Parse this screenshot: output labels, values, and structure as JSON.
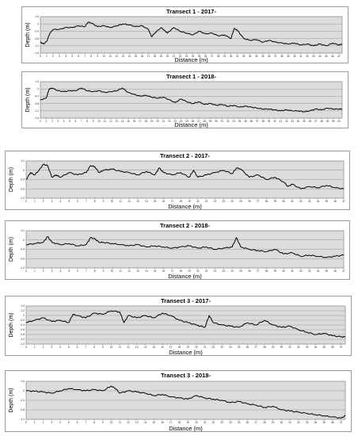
{
  "chart_data": [
    {
      "type": "line",
      "title": "Transect 1 - 2017-",
      "xlabel": "Distance (m)",
      "ylabel": "Depth (m)",
      "xlim": [
        0,
        47.5
      ],
      "ylim": [
        -1.6,
        0.4
      ],
      "yticks": [
        0.4,
        0,
        -0.4,
        -0.8,
        -1.2,
        -1.6
      ],
      "ytick_labels": [
        "0.4",
        "0",
        "-0.4",
        "-0.8",
        "-1.2",
        "-1.6"
      ],
      "xticks": [
        0,
        1,
        2,
        3,
        4,
        5,
        6,
        7,
        8,
        9,
        10,
        11,
        12,
        13,
        14,
        15,
        16,
        17,
        18,
        19,
        20,
        21,
        22,
        23,
        24,
        25,
        26,
        27,
        28,
        29,
        30,
        31,
        32,
        33,
        34,
        35,
        36,
        37,
        38,
        39,
        40,
        41,
        42,
        43,
        44,
        45,
        46,
        47
      ],
      "grid": true,
      "series": [
        {
          "x": [
            0,
            0.5,
            1,
            1.5,
            2,
            3,
            4,
            5,
            6,
            7,
            7.5,
            8,
            9,
            10,
            11,
            12,
            13,
            14,
            15,
            16,
            17,
            17.5,
            18,
            19,
            19.5,
            20,
            21,
            22,
            23,
            24,
            25,
            26,
            27,
            28,
            29,
            30,
            30.5,
            31,
            32,
            33,
            34,
            35,
            36,
            37,
            38,
            39,
            40,
            41,
            42,
            43,
            44,
            45,
            46,
            47,
            47.5
          ],
          "values": [
            -1.0,
            -1.1,
            -0.95,
            -0.5,
            -0.3,
            -0.3,
            -0.2,
            -0.2,
            -0.1,
            -0.15,
            0.1,
            0.05,
            -0.15,
            -0.1,
            -0.2,
            -0.1,
            0.0,
            -0.05,
            -0.15,
            -0.1,
            -0.3,
            -0.7,
            -0.5,
            -0.2,
            -0.35,
            -0.5,
            -0.2,
            -0.4,
            -0.5,
            -0.6,
            -0.4,
            -0.55,
            -0.5,
            -0.65,
            -0.6,
            -0.8,
            -0.25,
            -0.35,
            -0.8,
            -0.9,
            -0.85,
            -1.0,
            -0.9,
            -1.0,
            -1.05,
            -1.1,
            -1.05,
            -1.15,
            -1.1,
            -1.2,
            -1.1,
            -1.2,
            -1.05,
            -1.15,
            -1.1
          ]
        }
      ]
    },
    {
      "type": "line",
      "title": "Transect 1 - 2018-",
      "xlabel": "Distance (m)",
      "ylabel": "Depth (m)",
      "xlim": [
        0,
        51.5
      ],
      "ylim": [
        -1.6,
        0.4
      ],
      "yticks": [
        0.4,
        0,
        -0.4,
        -0.8,
        -1.2,
        -1.6
      ],
      "ytick_labels": [
        "0.4",
        "0",
        "-0.4",
        "-0.8",
        "-1.2",
        "-1.6"
      ],
      "xticks": [
        0,
        1,
        2,
        3,
        4,
        5,
        6,
        7,
        8,
        9,
        10,
        11,
        12,
        13,
        14,
        15,
        16,
        17,
        18,
        19,
        20,
        21,
        22,
        23,
        24,
        25,
        26,
        27,
        28,
        29,
        30,
        31,
        32,
        33,
        34,
        35,
        36,
        37,
        38,
        39,
        40,
        41,
        42,
        43,
        44,
        45,
        46,
        47,
        48,
        49,
        50,
        51
      ],
      "grid": true,
      "series": [
        {
          "x": [
            0,
            1,
            1.5,
            2,
            3,
            4,
            5,
            6,
            7,
            8,
            9,
            10,
            11,
            12,
            13,
            14,
            15,
            16,
            17,
            18,
            19,
            20,
            21,
            22,
            23,
            24,
            25,
            26,
            27,
            28,
            29,
            30,
            31,
            32,
            33,
            34,
            35,
            36,
            37,
            38,
            39,
            40,
            41,
            42,
            43,
            44,
            45,
            46,
            47,
            48,
            49,
            50,
            51,
            51.5
          ],
          "values": [
            -0.6,
            -0.5,
            0.0,
            0.05,
            -0.1,
            -0.15,
            -0.1,
            -0.1,
            0.05,
            -0.1,
            -0.15,
            -0.1,
            -0.2,
            -0.15,
            -0.1,
            0.05,
            -0.2,
            -0.3,
            -0.4,
            -0.35,
            -0.45,
            -0.5,
            -0.45,
            -0.6,
            -0.75,
            -0.55,
            -0.7,
            -0.8,
            -0.7,
            -0.85,
            -0.8,
            -0.9,
            -0.85,
            -0.95,
            -0.9,
            -1.0,
            -0.95,
            -1.0,
            -1.05,
            -1.1,
            -1.1,
            -1.15,
            -1.2,
            -1.15,
            -1.2,
            -1.2,
            -1.25,
            -1.2,
            -1.1,
            -1.15,
            -1.05,
            -1.1,
            -1.1,
            -1.1
          ]
        }
      ]
    },
    {
      "type": "line",
      "title": "Transect 2 - 2017-",
      "xlabel": "Distance (m)",
      "ylabel": "Depth (m)",
      "xlim": [
        0,
        37
      ],
      "ylim": [
        -1.2,
        0.4
      ],
      "yticks": [
        0.4,
        0,
        -0.4,
        -0.8,
        -1.2
      ],
      "ytick_labels": [
        "0.4",
        "0",
        "-0.4",
        "-0.8",
        "-1.2"
      ],
      "xticks": [
        0,
        1,
        2,
        3,
        4,
        5,
        6,
        7,
        8,
        9,
        10,
        11,
        12,
        13,
        14,
        15,
        16,
        17,
        18,
        19,
        20,
        21,
        22,
        23,
        24,
        25,
        26,
        27,
        28,
        29,
        30,
        31,
        32,
        33,
        34,
        35,
        36,
        37
      ],
      "grid": true,
      "series": [
        {
          "x": [
            0,
            0.5,
            1,
            1.5,
            2,
            2.5,
            3,
            3.5,
            4,
            5,
            6,
            7,
            7.5,
            8,
            8.5,
            9,
            10,
            11,
            12,
            13,
            14,
            15,
            15.5,
            16,
            17,
            18,
            19,
            19.5,
            20,
            21,
            22,
            23,
            24,
            24.5,
            25,
            26,
            27,
            28,
            29,
            30,
            30.5,
            31,
            32,
            33,
            34,
            35,
            36,
            37
          ],
          "values": [
            -0.4,
            -0.1,
            -0.2,
            0.0,
            0.25,
            0.2,
            -0.3,
            -0.2,
            -0.3,
            -0.1,
            -0.2,
            -0.1,
            0.2,
            0.15,
            -0.1,
            0.0,
            0.05,
            -0.05,
            -0.1,
            -0.2,
            -0.05,
            -0.2,
            0.1,
            -0.1,
            -0.2,
            -0.1,
            -0.3,
            0.0,
            -0.3,
            -0.2,
            -0.1,
            0.0,
            -0.15,
            0.1,
            0.05,
            -0.3,
            -0.2,
            -0.4,
            -0.3,
            -0.5,
            -0.7,
            -0.6,
            -0.8,
            -0.7,
            -0.75,
            -0.65,
            -0.75,
            -0.8
          ]
        }
      ]
    },
    {
      "type": "line",
      "title": "Transect 2 - 2018-",
      "xlabel": "Distance (m)",
      "ylabel": "Depth (m)",
      "xlim": [
        0,
        37
      ],
      "ylim": [
        -1.2,
        0.4
      ],
      "yticks": [
        0.4,
        0,
        -0.4,
        -0.8,
        -1.2
      ],
      "ytick_labels": [
        "0.4",
        "0",
        "-0.4",
        "-0.8",
        "-1.2"
      ],
      "xticks": [
        0,
        1,
        2,
        3,
        4,
        5,
        6,
        7,
        8,
        9,
        10,
        11,
        12,
        13,
        14,
        15,
        16,
        17,
        18,
        19,
        20,
        21,
        22,
        23,
        24,
        25,
        26,
        27,
        28,
        29,
        30,
        31,
        32,
        33,
        34,
        35,
        36,
        37
      ],
      "grid": true,
      "series": [
        {
          "x": [
            0,
            1,
            2,
            2.5,
            3,
            4,
            5,
            6,
            7,
            7.5,
            8,
            8.5,
            9,
            10,
            11,
            12,
            13,
            14,
            15,
            16,
            17,
            18,
            19,
            20,
            21,
            22,
            23,
            24,
            24.5,
            25,
            26,
            27,
            28,
            29,
            30,
            31,
            32,
            33,
            34,
            35,
            36,
            37
          ],
          "values": [
            -0.2,
            -0.15,
            -0.1,
            0.15,
            -0.1,
            -0.2,
            -0.15,
            -0.25,
            -0.2,
            0.1,
            0.05,
            -0.1,
            -0.1,
            -0.15,
            -0.2,
            -0.25,
            -0.2,
            -0.3,
            -0.25,
            -0.3,
            -0.35,
            -0.3,
            -0.25,
            -0.35,
            -0.3,
            -0.4,
            -0.35,
            -0.3,
            0.1,
            -0.3,
            -0.4,
            -0.45,
            -0.5,
            -0.4,
            -0.6,
            -0.55,
            -0.7,
            -0.65,
            -0.7,
            -0.75,
            -0.7,
            -0.65
          ]
        }
      ]
    },
    {
      "type": "line",
      "title": "Transect 3 - 2017-",
      "xlabel": "Distance (m)",
      "ylabel": "Depth (m)",
      "xlim": [
        0,
        37.5
      ],
      "ylim": [
        -1.2,
        0.4
      ],
      "yticks": [
        0.4,
        0.2,
        0,
        -0.2,
        -0.4,
        -0.6,
        -0.8,
        -1.0,
        -1.2
      ],
      "ytick_labels": [
        "0.4",
        "0.2",
        "0",
        "-0.2",
        "-0.4",
        "-0.6",
        "-0.8",
        "-1.0",
        "-1.2"
      ],
      "xticks": [
        0,
        1,
        2,
        3,
        4,
        5,
        6,
        7,
        8,
        9,
        10,
        11,
        12,
        13,
        14,
        15,
        16,
        17,
        18,
        19,
        20,
        21,
        22,
        23,
        24,
        25,
        26,
        27,
        28,
        29,
        30,
        31,
        32,
        33,
        34,
        35,
        36,
        37
      ],
      "grid": true,
      "series": [
        {
          "x": [
            0,
            1,
            2,
            3,
            4,
            5,
            5.5,
            6,
            7,
            8,
            9,
            10,
            11,
            11.5,
            12,
            13,
            14,
            15,
            16,
            17,
            18,
            19,
            20,
            21,
            21.5,
            22,
            23,
            24,
            25,
            26,
            27,
            28,
            29,
            30,
            31,
            32,
            33,
            34,
            35,
            36,
            37,
            37.5
          ],
          "values": [
            -0.3,
            -0.2,
            -0.1,
            -0.25,
            -0.2,
            -0.3,
            0.05,
            0.0,
            -0.1,
            0.1,
            0.05,
            0.2,
            0.15,
            -0.3,
            0.0,
            -0.1,
            0.0,
            -0.1,
            0.1,
            0.0,
            -0.2,
            -0.3,
            -0.4,
            -0.5,
            0.0,
            -0.3,
            -0.4,
            -0.45,
            -0.5,
            -0.3,
            -0.4,
            -0.2,
            -0.4,
            -0.5,
            -0.45,
            -0.6,
            -0.7,
            -0.8,
            -0.75,
            -0.85,
            -0.9,
            -0.9
          ]
        }
      ]
    },
    {
      "type": "line",
      "title": "Transect 3 - 2018-",
      "xlabel": "Distance (m)",
      "ylabel": "Depth (m)",
      "xlim": [
        0,
        37.5
      ],
      "ylim": [
        -1.2,
        0.4
      ],
      "yticks": [
        0.4,
        0,
        -0.4,
        -0.8,
        -1.2
      ],
      "ytick_labels": [
        "0.4",
        "0",
        "-0.4",
        "-0.8",
        "-1.2"
      ],
      "xticks": [
        0,
        1,
        2,
        3,
        4,
        5,
        6,
        7,
        8,
        9,
        10,
        11,
        12,
        13,
        14,
        15,
        16,
        17,
        18,
        19,
        20,
        21,
        22,
        23,
        24,
        25,
        26,
        27,
        28,
        29,
        30,
        31,
        32,
        33,
        34,
        35,
        36,
        37
      ],
      "grid": true,
      "series": [
        {
          "x": [
            0,
            1,
            2,
            3,
            4,
            5,
            6,
            7,
            8,
            9,
            10,
            10.5,
            11,
            12,
            13,
            14,
            15,
            16,
            17,
            18,
            19,
            20,
            21,
            22,
            23,
            24,
            25,
            26,
            27,
            28,
            29,
            30,
            31,
            32,
            33,
            34,
            35,
            36,
            37,
            37.5
          ],
          "values": [
            0.0,
            -0.02,
            -0.05,
            -0.1,
            0.0,
            0.1,
            0.05,
            0.0,
            0.05,
            0.0,
            0.2,
            0.1,
            -0.1,
            0.0,
            -0.05,
            -0.1,
            -0.2,
            -0.15,
            -0.25,
            -0.3,
            -0.35,
            -0.2,
            -0.3,
            -0.35,
            -0.4,
            -0.5,
            -0.45,
            -0.55,
            -0.6,
            -0.7,
            -0.65,
            -0.8,
            -0.85,
            -0.9,
            -0.95,
            -1.0,
            -1.05,
            -1.1,
            -1.15,
            -1.05
          ]
        }
      ]
    }
  ]
}
